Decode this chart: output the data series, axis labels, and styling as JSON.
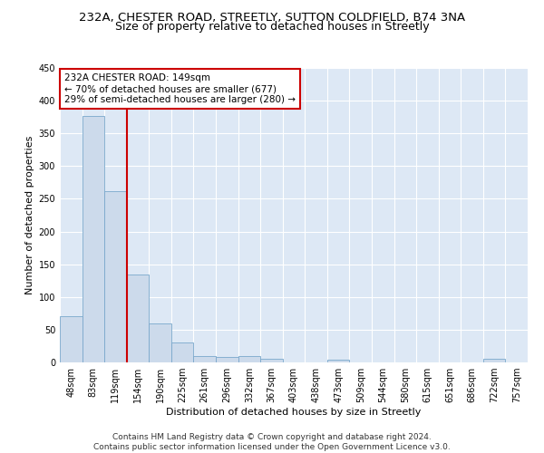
{
  "title_line1": "232A, CHESTER ROAD, STREETLY, SUTTON COLDFIELD, B74 3NA",
  "title_line2": "Size of property relative to detached houses in Streetly",
  "xlabel": "Distribution of detached houses by size in Streetly",
  "ylabel": "Number of detached properties",
  "bin_labels": [
    "48sqm",
    "83sqm",
    "119sqm",
    "154sqm",
    "190sqm",
    "225sqm",
    "261sqm",
    "296sqm",
    "332sqm",
    "367sqm",
    "403sqm",
    "438sqm",
    "473sqm",
    "509sqm",
    "544sqm",
    "580sqm",
    "615sqm",
    "651sqm",
    "686sqm",
    "722sqm",
    "757sqm"
  ],
  "bar_values": [
    70,
    377,
    262,
    135,
    59,
    30,
    10,
    8,
    10,
    5,
    0,
    0,
    4,
    0,
    0,
    0,
    0,
    0,
    0,
    5,
    0
  ],
  "bar_color": "#ccdaeb",
  "bar_edge_color": "#7aa8cc",
  "reference_line_x": 3.0,
  "reference_line_color": "#cc0000",
  "annotation_text": "232A CHESTER ROAD: 149sqm\n← 70% of detached houses are smaller (677)\n29% of semi-detached houses are larger (280) →",
  "annotation_box_color": "#ffffff",
  "annotation_box_edge_color": "#cc0000",
  "ylim": [
    0,
    450
  ],
  "yticks": [
    0,
    50,
    100,
    150,
    200,
    250,
    300,
    350,
    400,
    450
  ],
  "footer_line1": "Contains HM Land Registry data © Crown copyright and database right 2024.",
  "footer_line2": "Contains public sector information licensed under the Open Government Licence v3.0.",
  "background_color": "#dde8f5",
  "grid_color": "#ffffff",
  "title_fontsize": 9.5,
  "subtitle_fontsize": 9,
  "axis_label_fontsize": 8,
  "tick_fontsize": 7,
  "annotation_fontsize": 7.5,
  "footer_fontsize": 6.5
}
